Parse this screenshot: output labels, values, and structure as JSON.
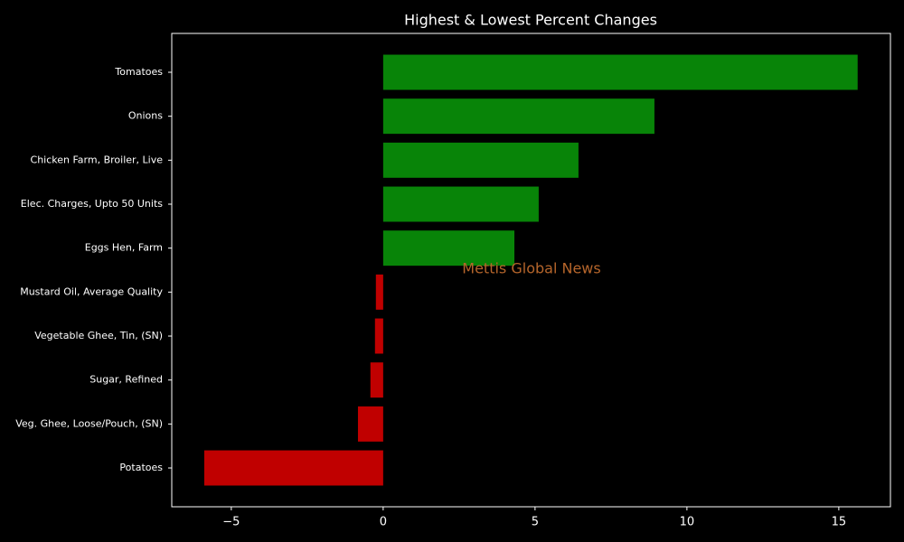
{
  "chart_data": {
    "type": "barh",
    "title": "Highest & Lowest Percent Changes",
    "annotation": "Mettis Global News",
    "categories": [
      "Tomatoes",
      "Onions",
      "Chicken Farm, Broiler, Live",
      "Elec. Charges, Upto 50 Units",
      "Eggs Hen, Farm",
      "Mustard Oil, Average Quality",
      "Vegetable Ghee, Tin, (SN)",
      "Sugar, Refined",
      "Veg. Ghee, Loose/Pouch, (SN)",
      "Potatoes"
    ],
    "values": [
      15.62,
      8.93,
      6.43,
      5.12,
      4.32,
      -0.24,
      -0.27,
      -0.42,
      -0.83,
      -5.89
    ],
    "colors": [
      "#088408",
      "#088408",
      "#088408",
      "#088408",
      "#088408",
      "#c00000",
      "#c00000",
      "#c00000",
      "#c00000",
      "#c00000"
    ],
    "xlim": [
      -6.96,
      16.7
    ],
    "xticks": [
      {
        "value": -5,
        "label": "−5"
      },
      0,
      5,
      10,
      15
    ]
  }
}
